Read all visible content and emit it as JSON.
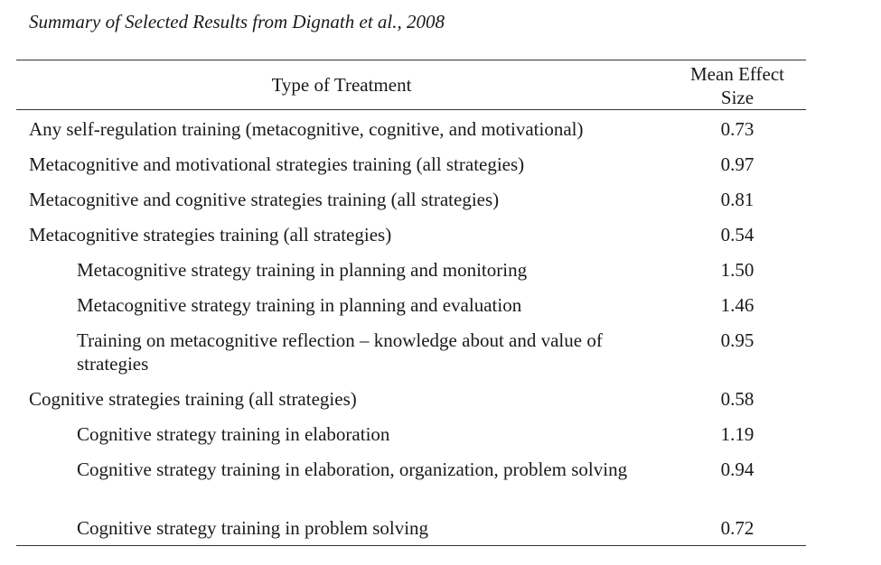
{
  "caption": "Summary of Selected Results from Dignath et al., 2008",
  "header": {
    "treatment": "Type of Treatment",
    "effect_line1": "Mean Effect",
    "effect_line2": "Size"
  },
  "rows": [
    {
      "treatment": "Any self-regulation training (metacognitive, cognitive, and motivational)",
      "effect": "0.73"
    },
    {
      "treatment": "Metacognitive and motivational strategies training (all strategies)",
      "effect": "0.97"
    },
    {
      "treatment": "Metacognitive and cognitive strategies training (all strategies)",
      "effect": "0.81"
    },
    {
      "treatment": "Metacognitive strategies training (all strategies)",
      "effect": "0.54"
    },
    {
      "treatment": "Metacognitive strategy training in planning and monitoring",
      "effect": "1.50"
    },
    {
      "treatment": "Metacognitive strategy training in planning and evaluation",
      "effect": "1.46"
    },
    {
      "treatment": "Training on metacognitive reflection – knowledge about and value of strategies",
      "effect": "0.95"
    },
    {
      "treatment": "Cognitive strategies training (all strategies)",
      "effect": "0.58"
    },
    {
      "treatment": "Cognitive strategy training in elaboration",
      "effect": "1.19"
    },
    {
      "treatment": "Cognitive strategy training in elaboration, organization, problem solving",
      "effect": "0.94"
    },
    {
      "treatment": "Cognitive strategy training in problem solving",
      "effect": "0.72"
    }
  ]
}
